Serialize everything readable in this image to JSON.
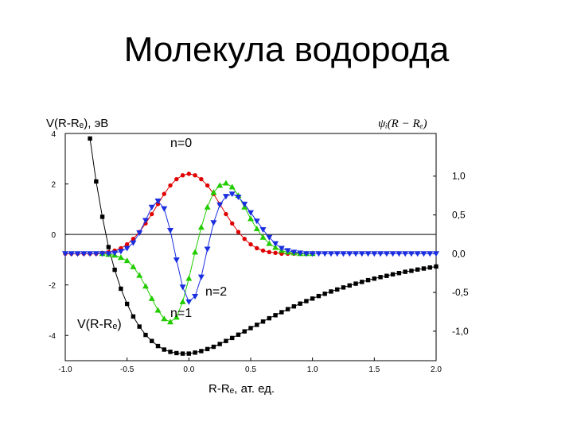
{
  "slide": {
    "title": "Молекула водорода"
  },
  "chart_data": {
    "type": "scatter",
    "xlabel": "R-Rₑ, ат. ед.",
    "ylabel_left": "V(R-Rₑ), эВ",
    "ylabel_right": "ψᵢ(R − Rₑ)",
    "xlim": [
      -1.0,
      2.0
    ],
    "ylim_left": [
      -5,
      4
    ],
    "ylim_right": [
      -1.38,
      1.55
    ],
    "x_ticks": [
      "-1.0",
      "-0.5",
      "0.0",
      "0.5",
      "1.0",
      "1.5",
      "2.0"
    ],
    "left_ticks": [
      {
        "v": 4,
        "label": "4"
      },
      {
        "v": 2,
        "label": "2"
      },
      {
        "v": 0,
        "label": "0"
      },
      {
        "v": -2,
        "label": "-2"
      },
      {
        "v": -4,
        "label": "-4"
      }
    ],
    "right_ticks": [
      {
        "v": 1.0,
        "label": "1,0"
      },
      {
        "v": 0.5,
        "label": "0,5"
      },
      {
        "v": 0.0,
        "label": "0,0"
      },
      {
        "v": -0.5,
        "label": "-0,5"
      },
      {
        "v": -1.0,
        "label": "-1,0"
      }
    ],
    "annotations": {
      "n0": "n=0",
      "n1": "n=1",
      "n2": "n=2",
      "potential": "V(R-Rₑ)"
    },
    "series": [
      {
        "marker": "square",
        "color": "#000000",
        "axis": "left",
        "x": [
          -0.8,
          -0.75,
          -0.7,
          -0.65,
          -0.6,
          -0.55,
          -0.5,
          -0.45,
          -0.4,
          -0.35,
          -0.3,
          -0.25,
          -0.2,
          -0.15,
          -0.1,
          -0.05,
          0.0,
          0.05,
          0.1,
          0.15,
          0.2,
          0.25,
          0.3,
          0.35,
          0.4,
          0.45,
          0.5,
          0.55,
          0.6,
          0.65,
          0.7,
          0.75,
          0.8,
          0.85,
          0.9,
          0.95,
          1.0,
          1.05,
          1.1,
          1.15,
          1.2,
          1.25,
          1.3,
          1.35,
          1.4,
          1.45,
          1.5,
          1.55,
          1.6,
          1.65,
          1.7,
          1.75,
          1.8,
          1.85,
          1.9,
          1.95,
          2.0
        ],
        "y": [
          3.8,
          2.1,
          0.7,
          -0.5,
          -1.4,
          -2.15,
          -2.75,
          -3.25,
          -3.65,
          -3.98,
          -4.22,
          -4.42,
          -4.56,
          -4.65,
          -4.7,
          -4.72,
          -4.72,
          -4.68,
          -4.62,
          -4.54,
          -4.45,
          -4.34,
          -4.22,
          -4.1,
          -3.97,
          -3.84,
          -3.71,
          -3.58,
          -3.45,
          -3.32,
          -3.2,
          -3.08,
          -2.96,
          -2.85,
          -2.74,
          -2.64,
          -2.54,
          -2.44,
          -2.35,
          -2.26,
          -2.18,
          -2.1,
          -2.02,
          -1.95,
          -1.88,
          -1.81,
          -1.75,
          -1.69,
          -1.64,
          -1.58,
          -1.53,
          -1.48,
          -1.44,
          -1.39,
          -1.35,
          -1.31,
          -1.27
        ]
      },
      {
        "marker": "circle",
        "color": "#e00000",
        "axis": "right",
        "x": [
          -1.0,
          -0.95,
          -0.9,
          -0.85,
          -0.8,
          -0.75,
          -0.7,
          -0.65,
          -0.6,
          -0.55,
          -0.5,
          -0.45,
          -0.4,
          -0.35,
          -0.3,
          -0.25,
          -0.2,
          -0.15,
          -0.1,
          -0.05,
          0.0,
          0.05,
          0.1,
          0.15,
          0.2,
          0.25,
          0.3,
          0.35,
          0.4,
          0.45,
          0.5,
          0.55,
          0.6,
          0.65,
          0.7,
          0.75,
          0.8,
          0.85,
          0.9,
          0.95,
          1.0
        ],
        "y": [
          0,
          0,
          0,
          0,
          0,
          0,
          0.01,
          0.02,
          0.04,
          0.07,
          0.12,
          0.19,
          0.28,
          0.39,
          0.51,
          0.64,
          0.77,
          0.88,
          0.96,
          1.01,
          1.03,
          1.01,
          0.96,
          0.88,
          0.77,
          0.64,
          0.51,
          0.39,
          0.28,
          0.19,
          0.12,
          0.07,
          0.04,
          0.02,
          0.01,
          0,
          0,
          0,
          0,
          0,
          0
        ]
      },
      {
        "marker": "triangle-up",
        "color": "#22cc00",
        "axis": "right",
        "x": [
          -0.7,
          -0.65,
          -0.6,
          -0.55,
          -0.5,
          -0.45,
          -0.4,
          -0.35,
          -0.3,
          -0.25,
          -0.2,
          -0.15,
          -0.1,
          -0.05,
          0.0,
          0.05,
          0.1,
          0.15,
          0.2,
          0.25,
          0.3,
          0.35,
          0.4,
          0.45,
          0.5,
          0.55,
          0.6,
          0.65,
          0.7,
          0.75,
          0.8,
          0.85,
          0.9,
          0.95,
          1.0
        ],
        "y": [
          0,
          -0.01,
          -0.02,
          -0.05,
          -0.09,
          -0.17,
          -0.28,
          -0.42,
          -0.58,
          -0.73,
          -0.84,
          -0.88,
          -0.82,
          -0.62,
          -0.32,
          0.02,
          0.34,
          0.6,
          0.79,
          0.88,
          0.91,
          0.86,
          0.75,
          0.6,
          0.45,
          0.32,
          0.21,
          0.13,
          0.08,
          0.04,
          0.02,
          0.01,
          0,
          0,
          0
        ]
      },
      {
        "marker": "triangle-down",
        "color": "#1a2ee0",
        "axis": "right",
        "x": [
          -1.0,
          -0.95,
          -0.9,
          -0.85,
          -0.8,
          -0.75,
          -0.7,
          -0.65,
          -0.6,
          -0.55,
          -0.5,
          -0.45,
          -0.4,
          -0.35,
          -0.3,
          -0.25,
          -0.2,
          -0.15,
          -0.1,
          -0.05,
          0.0,
          0.05,
          0.1,
          0.15,
          0.2,
          0.25,
          0.3,
          0.35,
          0.4,
          0.45,
          0.5,
          0.55,
          0.6,
          0.65,
          0.7,
          0.75,
          0.8,
          0.85,
          0.9,
          0.95,
          1.0,
          1.05,
          1.1,
          1.15,
          1.2,
          1.25,
          1.3,
          1.35,
          1.4,
          1.45,
          1.5,
          1.55,
          1.6,
          1.65,
          1.7,
          1.75,
          1.8,
          1.85,
          1.9,
          1.95,
          2.0
        ],
        "y": [
          0,
          0,
          0,
          0,
          0,
          0,
          0,
          0,
          0.01,
          0.03,
          0.07,
          0.14,
          0.27,
          0.43,
          0.6,
          0.68,
          0.58,
          0.3,
          -0.08,
          -0.43,
          -0.62,
          -0.55,
          -0.3,
          0.06,
          0.4,
          0.63,
          0.74,
          0.77,
          0.73,
          0.64,
          0.53,
          0.42,
          0.31,
          0.21,
          0.13,
          0.07,
          0.04,
          0.02,
          0.01,
          0,
          0,
          0,
          0,
          0,
          0,
          0,
          0,
          0,
          0,
          0,
          0,
          0,
          0,
          0,
          0,
          0,
          0,
          0,
          0,
          0,
          0
        ]
      }
    ]
  }
}
